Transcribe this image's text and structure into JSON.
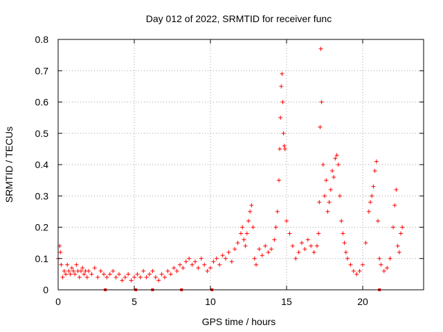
{
  "chart_data": {
    "type": "scatter",
    "title": "Day 012 of 2022, SRMTID for receiver func",
    "xlabel": "GPS time / hours",
    "ylabel": "SRMTID / TECUs",
    "xlim": [
      0,
      24
    ],
    "ylim": [
      0,
      0.8
    ],
    "x_ticks": [
      0,
      5,
      10,
      15,
      20
    ],
    "y_ticks": [
      0,
      0.1,
      0.2,
      0.3,
      0.4,
      0.5,
      0.6,
      0.7,
      0.8
    ],
    "x_tick_labels": [
      "0",
      "5",
      "10",
      "15",
      "20"
    ],
    "y_tick_labels": [
      "0",
      "0.1",
      "0.2",
      "0.3",
      "0.4",
      "0.5",
      "0.6",
      "0.7",
      "0.8"
    ],
    "grid": true,
    "marker": "+",
    "color": "#ff0000",
    "series": [
      {
        "name": "SRMTID",
        "x": [
          0.0,
          0.1,
          0.15,
          0.2,
          0.3,
          0.4,
          0.5,
          0.6,
          0.7,
          0.8,
          0.9,
          1.0,
          1.1,
          1.2,
          1.3,
          1.4,
          1.5,
          1.6,
          1.7,
          1.8,
          1.9,
          2.0,
          2.2,
          2.4,
          2.6,
          2.8,
          3.0,
          3.2,
          3.4,
          3.6,
          3.8,
          4.0,
          4.2,
          4.4,
          4.6,
          4.8,
          5.0,
          5.2,
          5.4,
          5.6,
          5.8,
          6.0,
          6.2,
          6.4,
          6.6,
          6.8,
          7.0,
          7.2,
          7.4,
          7.6,
          7.8,
          8.0,
          8.2,
          8.4,
          8.6,
          8.8,
          9.0,
          9.2,
          9.4,
          9.6,
          9.8,
          10.0,
          10.2,
          10.4,
          10.6,
          10.8,
          11.0,
          11.2,
          11.4,
          11.6,
          11.8,
          12.0,
          12.1,
          12.2,
          12.3,
          12.4,
          12.5,
          12.6,
          12.7,
          12.8,
          12.9,
          13.0,
          13.2,
          13.4,
          13.6,
          13.8,
          14.0,
          14.2,
          14.3,
          14.4,
          14.5,
          14.55,
          14.6,
          14.65,
          14.7,
          14.75,
          14.8,
          14.85,
          14.9,
          15.0,
          15.2,
          15.4,
          15.6,
          15.8,
          16.0,
          16.2,
          16.4,
          16.6,
          16.8,
          17.0,
          17.1,
          17.15,
          17.2,
          17.25,
          17.3,
          17.4,
          17.5,
          17.6,
          17.7,
          17.8,
          17.9,
          18.0,
          18.1,
          18.2,
          18.3,
          18.4,
          18.5,
          18.6,
          18.7,
          18.8,
          18.9,
          19.0,
          19.2,
          19.4,
          19.6,
          19.8,
          20.0,
          20.2,
          20.4,
          20.5,
          20.6,
          20.7,
          20.8,
          20.9,
          21.0,
          21.1,
          21.2,
          21.4,
          21.6,
          21.8,
          22.0,
          22.1,
          22.2,
          22.3,
          22.4,
          22.5,
          22.6
        ],
        "y": [
          0.1,
          0.14,
          0.12,
          0.08,
          0.04,
          0.06,
          0.05,
          0.08,
          0.06,
          0.05,
          0.07,
          0.06,
          0.05,
          0.08,
          0.06,
          0.04,
          0.06,
          0.07,
          0.05,
          0.06,
          0.04,
          0.06,
          0.05,
          0.07,
          0.04,
          0.06,
          0.05,
          0.04,
          0.05,
          0.06,
          0.04,
          0.05,
          0.03,
          0.04,
          0.05,
          0.03,
          0.04,
          0.05,
          0.04,
          0.06,
          0.04,
          0.05,
          0.06,
          0.04,
          0.03,
          0.05,
          0.04,
          0.06,
          0.05,
          0.07,
          0.06,
          0.08,
          0.07,
          0.09,
          0.1,
          0.08,
          0.09,
          0.07,
          0.1,
          0.08,
          0.06,
          0.07,
          0.09,
          0.1,
          0.08,
          0.11,
          0.1,
          0.12,
          0.09,
          0.13,
          0.15,
          0.18,
          0.2,
          0.16,
          0.14,
          0.18,
          0.22,
          0.25,
          0.27,
          0.2,
          0.1,
          0.08,
          0.13,
          0.11,
          0.14,
          0.12,
          0.13,
          0.16,
          0.2,
          0.25,
          0.35,
          0.45,
          0.55,
          0.65,
          0.69,
          0.6,
          0.5,
          0.46,
          0.45,
          0.22,
          0.18,
          0.14,
          0.1,
          0.12,
          0.15,
          0.13,
          0.16,
          0.14,
          0.12,
          0.14,
          0.18,
          0.28,
          0.52,
          0.77,
          0.6,
          0.4,
          0.3,
          0.35,
          0.25,
          0.28,
          0.32,
          0.38,
          0.36,
          0.42,
          0.43,
          0.4,
          0.3,
          0.22,
          0.18,
          0.15,
          0.12,
          0.1,
          0.08,
          0.06,
          0.05,
          0.06,
          0.08,
          0.15,
          0.25,
          0.28,
          0.3,
          0.33,
          0.38,
          0.41,
          0.22,
          0.1,
          0.08,
          0.06,
          0.07,
          0.1,
          0.2,
          0.27,
          0.32,
          0.14,
          0.12,
          0.18,
          0.2
        ]
      }
    ],
    "bottom_markers_x": [
      3.1,
      5.1,
      6.2,
      8.1,
      10.1,
      21.1
    ]
  }
}
